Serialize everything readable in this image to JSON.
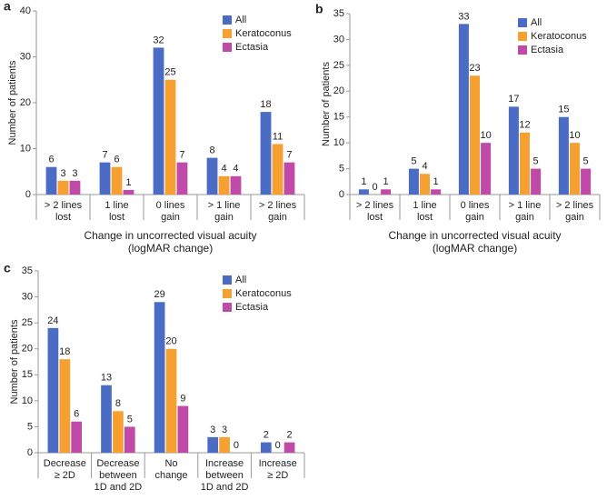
{
  "chart_data": [
    {
      "type": "bar",
      "panel": "a",
      "y_label": "Number of patients",
      "x_label": [
        "Change in uncorrected visual acuity",
        "(logMAR change)"
      ],
      "categories": [
        [
          "> 2 lines",
          "lost"
        ],
        [
          "1 line",
          "lost"
        ],
        [
          "0 lines",
          "gain"
        ],
        [
          "> 1 line",
          "gain"
        ],
        [
          "> 2 lines",
          "gain"
        ]
      ],
      "series": [
        {
          "name": "All",
          "color": "#4a6cc5",
          "values": [
            6,
            7,
            32,
            8,
            18
          ]
        },
        {
          "name": "Keratoconus",
          "color": "#f5a030",
          "values": [
            3,
            6,
            25,
            4,
            11
          ]
        },
        {
          "name": "Ectasia",
          "color": "#c04aa8",
          "values": [
            3,
            1,
            7,
            4,
            7
          ]
        }
      ],
      "ylim": [
        0,
        40
      ],
      "yticks": [
        0,
        10,
        20,
        30,
        40
      ],
      "legend": "top-right"
    },
    {
      "type": "bar",
      "panel": "b",
      "y_label": "Number of patients",
      "x_label": [
        "Change in uncorrected visual acuity",
        "(logMAR change)"
      ],
      "categories": [
        [
          "> 2 lines",
          "lost"
        ],
        [
          "1 line",
          "lost"
        ],
        [
          "0 lines",
          "gain"
        ],
        [
          "> 1 line",
          "gain"
        ],
        [
          "> 2 lines",
          "gain"
        ]
      ],
      "series": [
        {
          "name": "All",
          "color": "#4a6cc5",
          "values": [
            1,
            5,
            33,
            17,
            15
          ]
        },
        {
          "name": "Keratoconus",
          "color": "#f5a030",
          "values": [
            0,
            4,
            23,
            12,
            10
          ]
        },
        {
          "name": "Ectasia",
          "color": "#c04aa8",
          "values": [
            1,
            1,
            10,
            5,
            5
          ]
        }
      ],
      "ylim": [
        0,
        35
      ],
      "yticks": [
        0,
        5,
        10,
        15,
        20,
        25,
        30,
        35
      ],
      "legend": "top-right"
    },
    {
      "type": "bar",
      "panel": "c",
      "y_label": "Number of patients",
      "categories": [
        [
          "Decrease",
          "≥ 2D"
        ],
        [
          "Decrease",
          "between",
          "1D and 2D"
        ],
        [
          "No",
          "change"
        ],
        [
          "Increase",
          "between",
          "1D and 2D"
        ],
        [
          "Increase",
          "≥ 2D"
        ]
      ],
      "series": [
        {
          "name": "All",
          "color": "#4a6cc5",
          "values": [
            24,
            13,
            29,
            3,
            2
          ]
        },
        {
          "name": "Keratoconus",
          "color": "#f5a030",
          "values": [
            18,
            8,
            20,
            3,
            0
          ]
        },
        {
          "name": "Ectasia",
          "color": "#c04aa8",
          "values": [
            6,
            5,
            9,
            0,
            2
          ]
        }
      ],
      "ylim": [
        0,
        35
      ],
      "yticks": [
        0,
        5,
        10,
        15,
        20,
        25,
        30,
        35
      ],
      "legend": "top-right"
    }
  ]
}
